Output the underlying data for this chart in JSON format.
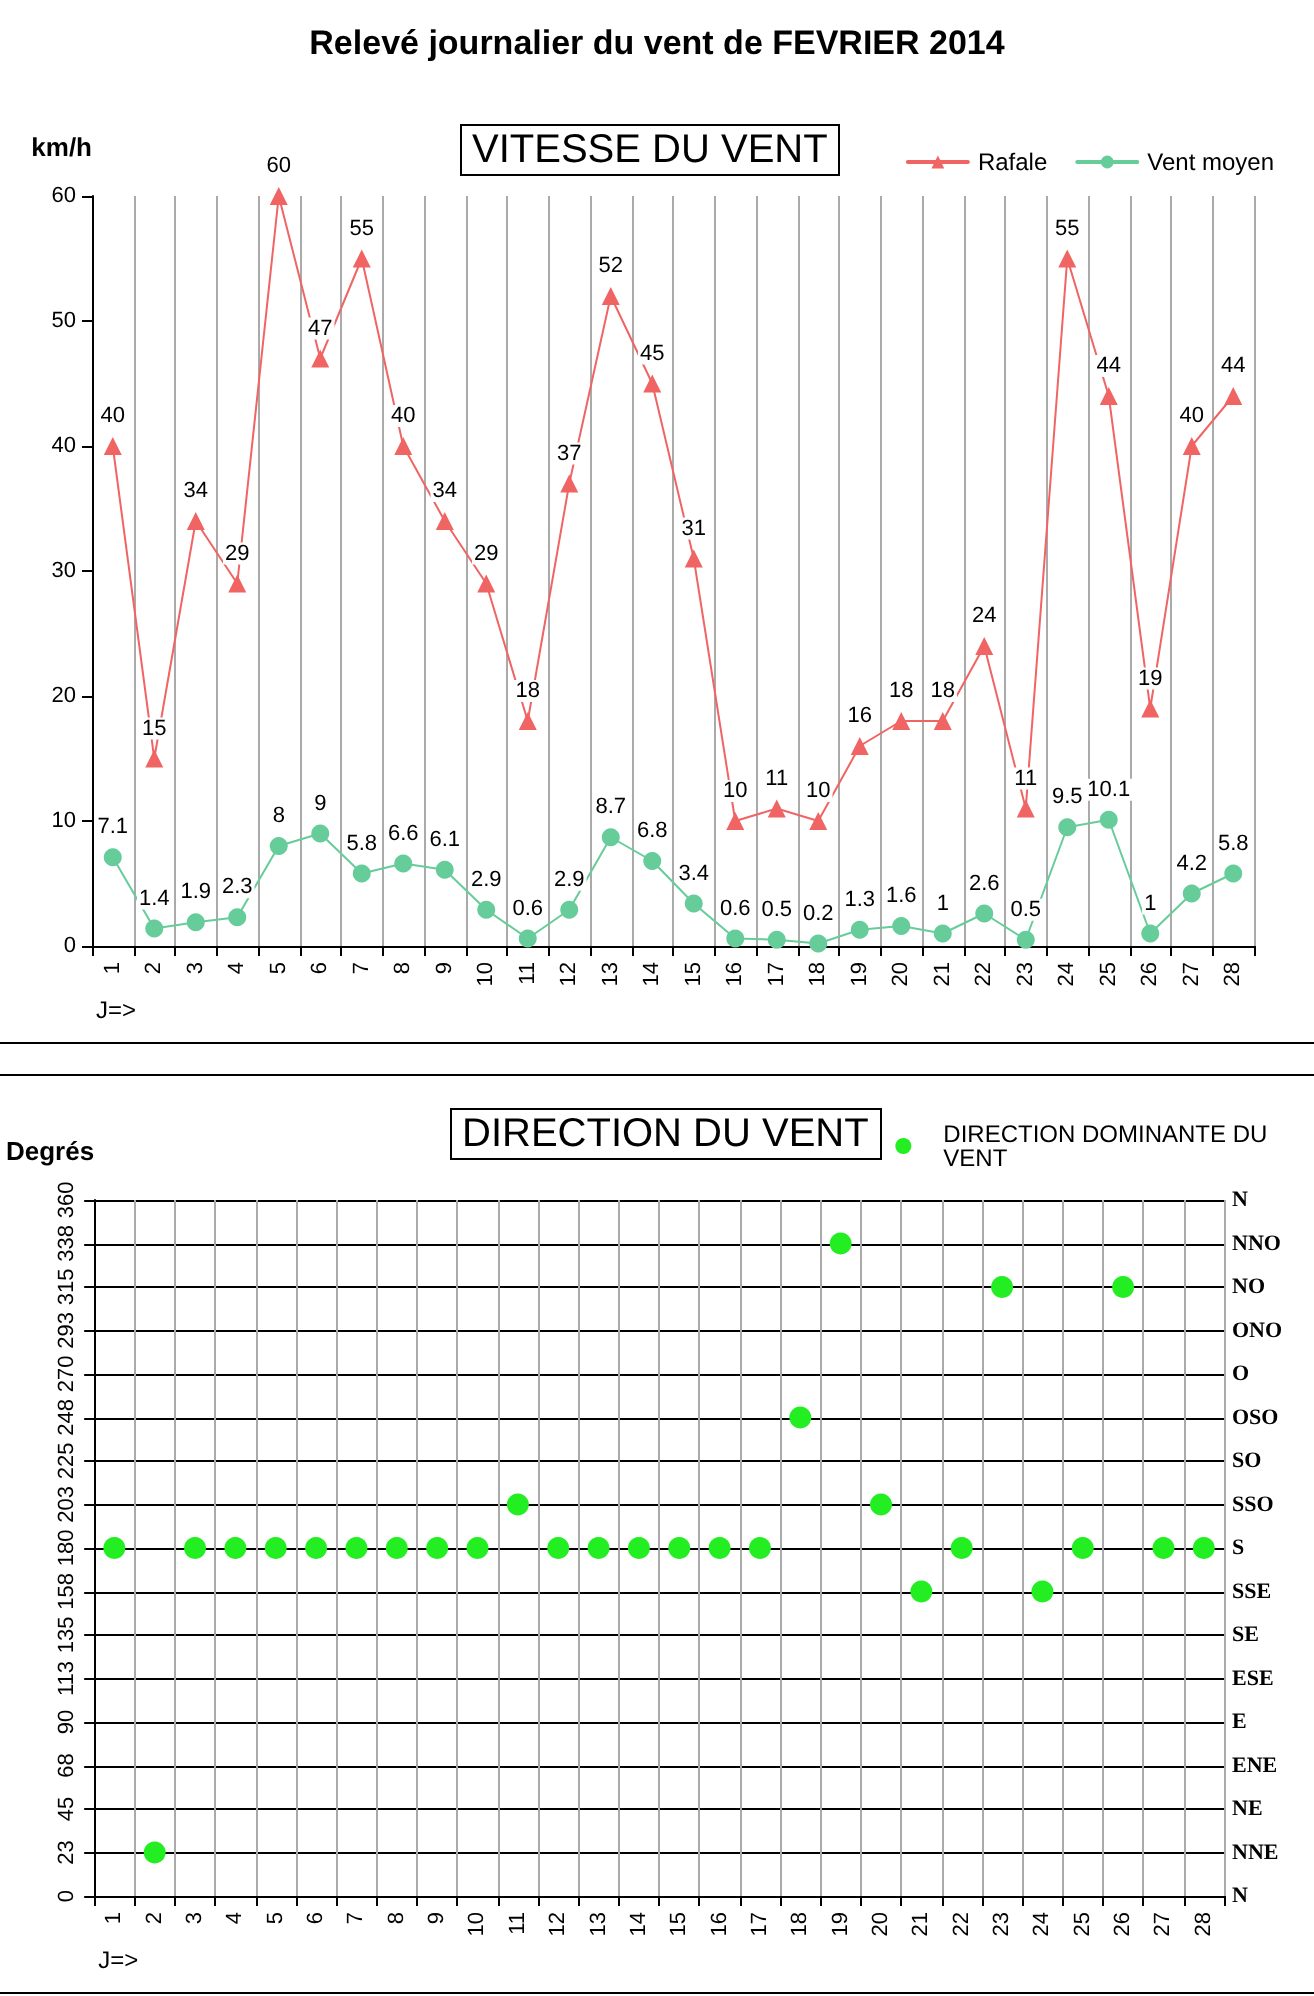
{
  "chart_data": [
    {
      "type": "line",
      "title": "Relevé journalier du vent de FEVRIER 2014",
      "subtitle": "VITESSE DU VENT",
      "xlabel": "J=>",
      "ylabel": "km/h",
      "categories": [
        "1",
        "2",
        "3",
        "4",
        "5",
        "6",
        "7",
        "8",
        "9",
        "10",
        "11",
        "12",
        "13",
        "14",
        "15",
        "16",
        "17",
        "18",
        "19",
        "20",
        "21",
        "22",
        "23",
        "24",
        "25",
        "26",
        "27",
        "28"
      ],
      "series": [
        {
          "name": "Rafale",
          "color": "#f06464",
          "marker": "triangle",
          "values": [
            40,
            15,
            34,
            29,
            60,
            47,
            55,
            40,
            34,
            29,
            18,
            37,
            52,
            45,
            31,
            10,
            11,
            10,
            16,
            18,
            18,
            24,
            11,
            55,
            44,
            19,
            40,
            44
          ]
        },
        {
          "name": "Vent moyen",
          "color": "#66cc99",
          "marker": "circle",
          "values": [
            7.1,
            1.4,
            1.9,
            2.3,
            8,
            9,
            5.8,
            6.6,
            6.1,
            2.9,
            0.6,
            2.9,
            8.7,
            6.8,
            3.4,
            0.6,
            0.5,
            0.2,
            1.3,
            1.6,
            1,
            2.6,
            0.5,
            9.5,
            10.1,
            1,
            4.2,
            5.8
          ]
        }
      ],
      "ylim": [
        0,
        60
      ],
      "yticks": [
        0,
        10,
        20,
        30,
        40,
        50,
        60
      ],
      "grid": "x",
      "legend": "top right",
      "data_labels": true,
      "line_style": "solid"
    },
    {
      "type": "scatter",
      "title": "DIRECTION DU VENT",
      "xlabel": "J=>",
      "ylabel": "Degrés",
      "categories": [
        "1",
        "2",
        "3",
        "4",
        "5",
        "6",
        "7",
        "8",
        "9",
        "10",
        "11",
        "12",
        "13",
        "14",
        "15",
        "16",
        "17",
        "18",
        "19",
        "20",
        "21",
        "22",
        "23",
        "24",
        "25",
        "26",
        "27",
        "28"
      ],
      "series": [
        {
          "name": "DIRECTION DOMINANTE DU VENT",
          "color": "#22ee22",
          "values": [
            180,
            22.5,
            180,
            180,
            180,
            180,
            180,
            180,
            180,
            180,
            202.5,
            180,
            180,
            180,
            180,
            180,
            180,
            247.5,
            337.5,
            202.5,
            157.5,
            180,
            315,
            157.5,
            180,
            315,
            180,
            180
          ]
        }
      ],
      "ylim": [
        0,
        360
      ],
      "yticks": [
        0,
        {
          "value": 22.5,
          "label": "23"
        },
        45,
        {
          "value": 67.5,
          "label": "68"
        },
        90,
        {
          "value": 112.5,
          "label": "113"
        },
        135,
        {
          "value": 157.5,
          "label": "158"
        },
        180,
        {
          "value": 202.5,
          "label": "203"
        },
        225,
        {
          "value": 247.5,
          "label": "248"
        },
        270,
        {
          "value": 292.5,
          "label": "293"
        },
        315,
        {
          "value": 337.5,
          "label": "338"
        },
        360
      ],
      "y2_categories": [
        "N",
        "NNO",
        "NO",
        "ONO",
        "O",
        "OSO",
        "SO",
        "SSO",
        "S",
        "SSE",
        "SE",
        "ESE",
        "E",
        "ENE",
        "NE",
        "NNE",
        "N"
      ],
      "grid": true,
      "legend": "top right",
      "marker": "circle"
    }
  ]
}
